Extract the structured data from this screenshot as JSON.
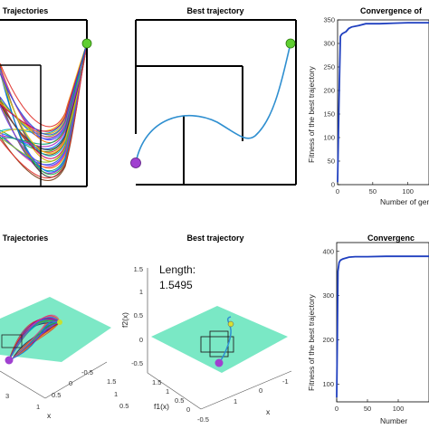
{
  "panels": {
    "top_left": {
      "title": "Trajectories"
    },
    "top_middle": {
      "title": "Best trajectory"
    },
    "top_right": {
      "title": "Convergence of"
    },
    "bottom_left": {
      "title": "Trajectories"
    },
    "bottom_middle": {
      "title": "Best trajectory",
      "length_label": "Length:",
      "length_value": "1.5495",
      "xlabel": "f1(x)",
      "ylabel": "f2(x)",
      "zlabel": "x"
    },
    "bottom_right": {
      "title": "Convergenc"
    }
  },
  "colors": {
    "accent_blue": "#1f3fbf",
    "path_blue": "#2f8fd0",
    "start_point": "#a040d0",
    "goal_point": "#5fcf30",
    "plane": "#6fe6c0"
  },
  "chart_data": [
    {
      "type": "line",
      "title": "Convergence of",
      "xlabel": "Number of gene",
      "ylabel": "Fitness of the best trajectory",
      "xlim": [
        0,
        130
      ],
      "ylim": [
        0,
        350
      ],
      "x_ticks": [
        0,
        50,
        100
      ],
      "y_ticks": [
        0,
        50,
        100,
        150,
        200,
        250,
        300,
        350
      ],
      "series": [
        {
          "x": [
            0,
            2,
            4,
            6,
            8,
            12,
            16,
            20,
            30,
            40,
            60,
            80,
            100,
            130
          ],
          "values": [
            5,
            180,
            315,
            320,
            322,
            325,
            332,
            335,
            338,
            342,
            342,
            343,
            344,
            344
          ]
        }
      ]
    },
    {
      "type": "line",
      "title": "Convergenc",
      "xlabel": "Number",
      "ylabel": "Fitness of the best trajectory",
      "xlim": [
        0,
        150
      ],
      "ylim": [
        60,
        420
      ],
      "x_ticks": [
        0,
        50,
        100
      ],
      "y_ticks": [
        100,
        200,
        300,
        400
      ],
      "series": [
        {
          "x": [
            0,
            1,
            2,
            4,
            6,
            10,
            15,
            20,
            30,
            50,
            80,
            120,
            150
          ],
          "values": [
            70,
            200,
            355,
            375,
            380,
            383,
            385,
            387,
            388,
            388,
            389,
            389,
            389
          ]
        }
      ]
    }
  ],
  "axes_3d": {
    "bottom_left": {
      "x_ticks": [
        "3",
        "1",
        "0.5",
        "0",
        "-0.5",
        "x"
      ],
      "right_ticks": [
        "1.5",
        "1",
        "0.5"
      ]
    },
    "bottom_middle": {
      "z_ticks": [
        "1.5",
        "1",
        "0.5",
        "0",
        "-0.5"
      ],
      "f1_ticks": [
        "1.5",
        "1",
        "0.5",
        "0",
        "-0.5"
      ],
      "x_ticks": [
        "1",
        "0",
        "-1"
      ]
    }
  }
}
